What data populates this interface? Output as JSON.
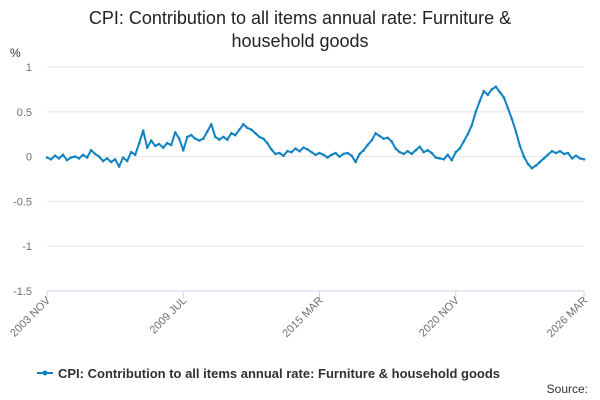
{
  "chart_data": {
    "type": "line",
    "title_line1": "CPI: Contribution to all items annual rate: Furniture &",
    "title_line2": "household goods",
    "ylabel": "%",
    "xlabel": "",
    "ylim": [
      -1.5,
      1
    ],
    "yticks": [
      1,
      0.5,
      0,
      -0.5,
      -1,
      -1.5
    ],
    "ytick_labels": [
      "1",
      "0.5",
      "0",
      "-0.5",
      "-1",
      "-1.5"
    ],
    "xlim": [
      "2003-11",
      "2026-03"
    ],
    "xticks": [
      "2003-11",
      "2009-07",
      "2015-03",
      "2020-11",
      "2026-03"
    ],
    "xtick_labels": [
      "2003 NOV",
      "2009 JUL",
      "2015 MAR",
      "2020 NOV",
      "2026 MAR"
    ],
    "grid": true,
    "legend_position": "bottom",
    "source_label": "Source:",
    "series": [
      {
        "name": "CPI: Contribution to all items annual rate: Furniture & household goods",
        "color": "#0f82c0",
        "points": [
          [
            "2003-11",
            -0.01
          ],
          [
            "2004-01",
            -0.03
          ],
          [
            "2004-03",
            0.01
          ],
          [
            "2004-05",
            -0.02
          ],
          [
            "2004-07",
            0.02
          ],
          [
            "2004-09",
            -0.04
          ],
          [
            "2004-11",
            -0.01
          ],
          [
            "2005-01",
            0.0
          ],
          [
            "2005-03",
            -0.02
          ],
          [
            "2005-05",
            0.02
          ],
          [
            "2005-07",
            -0.01
          ],
          [
            "2005-09",
            0.07
          ],
          [
            "2005-11",
            0.03
          ],
          [
            "2006-01",
            0.0
          ],
          [
            "2006-03",
            -0.05
          ],
          [
            "2006-05",
            -0.02
          ],
          [
            "2006-07",
            -0.06
          ],
          [
            "2006-09",
            -0.03
          ],
          [
            "2006-11",
            -0.11
          ],
          [
            "2007-01",
            -0.01
          ],
          [
            "2007-03",
            -0.05
          ],
          [
            "2007-05",
            0.05
          ],
          [
            "2007-07",
            0.02
          ],
          [
            "2007-09",
            0.15
          ],
          [
            "2007-11",
            0.29
          ],
          [
            "2008-01",
            0.1
          ],
          [
            "2008-03",
            0.18
          ],
          [
            "2008-05",
            0.12
          ],
          [
            "2008-07",
            0.14
          ],
          [
            "2008-09",
            0.1
          ],
          [
            "2008-11",
            0.15
          ],
          [
            "2009-01",
            0.13
          ],
          [
            "2009-03",
            0.27
          ],
          [
            "2009-05",
            0.2
          ],
          [
            "2009-07",
            0.07
          ],
          [
            "2009-09",
            0.22
          ],
          [
            "2009-11",
            0.24
          ],
          [
            "2010-01",
            0.2
          ],
          [
            "2010-03",
            0.18
          ],
          [
            "2010-05",
            0.2
          ],
          [
            "2010-07",
            0.28
          ],
          [
            "2010-09",
            0.36
          ],
          [
            "2010-11",
            0.22
          ],
          [
            "2011-01",
            0.19
          ],
          [
            "2011-03",
            0.22
          ],
          [
            "2011-05",
            0.19
          ],
          [
            "2011-07",
            0.26
          ],
          [
            "2011-09",
            0.24
          ],
          [
            "2011-11",
            0.3
          ],
          [
            "2012-01",
            0.36
          ],
          [
            "2012-03",
            0.32
          ],
          [
            "2012-05",
            0.3
          ],
          [
            "2012-07",
            0.26
          ],
          [
            "2012-09",
            0.22
          ],
          [
            "2012-11",
            0.2
          ],
          [
            "2013-01",
            0.15
          ],
          [
            "2013-03",
            0.08
          ],
          [
            "2013-05",
            0.03
          ],
          [
            "2013-07",
            0.04
          ],
          [
            "2013-09",
            0.01
          ],
          [
            "2013-11",
            0.06
          ],
          [
            "2014-01",
            0.05
          ],
          [
            "2014-03",
            0.09
          ],
          [
            "2014-05",
            0.06
          ],
          [
            "2014-07",
            0.1
          ],
          [
            "2014-09",
            0.08
          ],
          [
            "2014-11",
            0.05
          ],
          [
            "2015-01",
            0.02
          ],
          [
            "2015-03",
            0.04
          ],
          [
            "2015-05",
            0.02
          ],
          [
            "2015-07",
            -0.01
          ],
          [
            "2015-09",
            0.02
          ],
          [
            "2015-11",
            0.04
          ],
          [
            "2016-01",
            0.0
          ],
          [
            "2016-03",
            0.03
          ],
          [
            "2016-05",
            0.04
          ],
          [
            "2016-07",
            0.01
          ],
          [
            "2016-09",
            -0.06
          ],
          [
            "2016-11",
            0.03
          ],
          [
            "2017-01",
            0.07
          ],
          [
            "2017-03",
            0.13
          ],
          [
            "2017-05",
            0.18
          ],
          [
            "2017-07",
            0.26
          ],
          [
            "2017-09",
            0.23
          ],
          [
            "2017-11",
            0.2
          ],
          [
            "2018-01",
            0.21
          ],
          [
            "2018-03",
            0.17
          ],
          [
            "2018-05",
            0.09
          ],
          [
            "2018-07",
            0.05
          ],
          [
            "2018-09",
            0.03
          ],
          [
            "2018-11",
            0.06
          ],
          [
            "2019-01",
            0.03
          ],
          [
            "2019-03",
            0.07
          ],
          [
            "2019-05",
            0.11
          ],
          [
            "2019-07",
            0.05
          ],
          [
            "2019-09",
            0.07
          ],
          [
            "2019-11",
            0.04
          ],
          [
            "2020-01",
            -0.01
          ],
          [
            "2020-03",
            -0.02
          ],
          [
            "2020-05",
            -0.03
          ],
          [
            "2020-07",
            0.02
          ],
          [
            "2020-09",
            -0.04
          ],
          [
            "2020-11",
            0.05
          ],
          [
            "2021-01",
            0.09
          ],
          [
            "2021-03",
            0.17
          ],
          [
            "2021-05",
            0.25
          ],
          [
            "2021-07",
            0.35
          ],
          [
            "2021-09",
            0.5
          ],
          [
            "2021-11",
            0.62
          ],
          [
            "2022-01",
            0.73
          ],
          [
            "2022-03",
            0.69
          ],
          [
            "2022-05",
            0.75
          ],
          [
            "2022-07",
            0.78
          ],
          [
            "2022-09",
            0.72
          ],
          [
            "2022-11",
            0.66
          ],
          [
            "2023-01",
            0.54
          ],
          [
            "2023-03",
            0.42
          ],
          [
            "2023-05",
            0.28
          ],
          [
            "2023-07",
            0.12
          ],
          [
            "2023-09",
            0.0
          ],
          [
            "2023-11",
            -0.08
          ],
          [
            "2024-01",
            -0.13
          ],
          [
            "2024-03",
            -0.1
          ],
          [
            "2024-05",
            -0.06
          ],
          [
            "2024-07",
            -0.02
          ],
          [
            "2024-09",
            0.02
          ],
          [
            "2024-11",
            0.06
          ],
          [
            "2025-01",
            0.04
          ],
          [
            "2025-03",
            0.06
          ],
          [
            "2025-05",
            0.03
          ],
          [
            "2025-07",
            0.04
          ],
          [
            "2025-09",
            -0.02
          ],
          [
            "2025-11",
            0.01
          ],
          [
            "2026-01",
            -0.02
          ],
          [
            "2026-03",
            -0.03
          ]
        ]
      }
    ]
  },
  "colors": {
    "series": "#0f82c0",
    "grid": "#e6e6e6",
    "axis": "#ccd6eb",
    "title": "#222222"
  }
}
